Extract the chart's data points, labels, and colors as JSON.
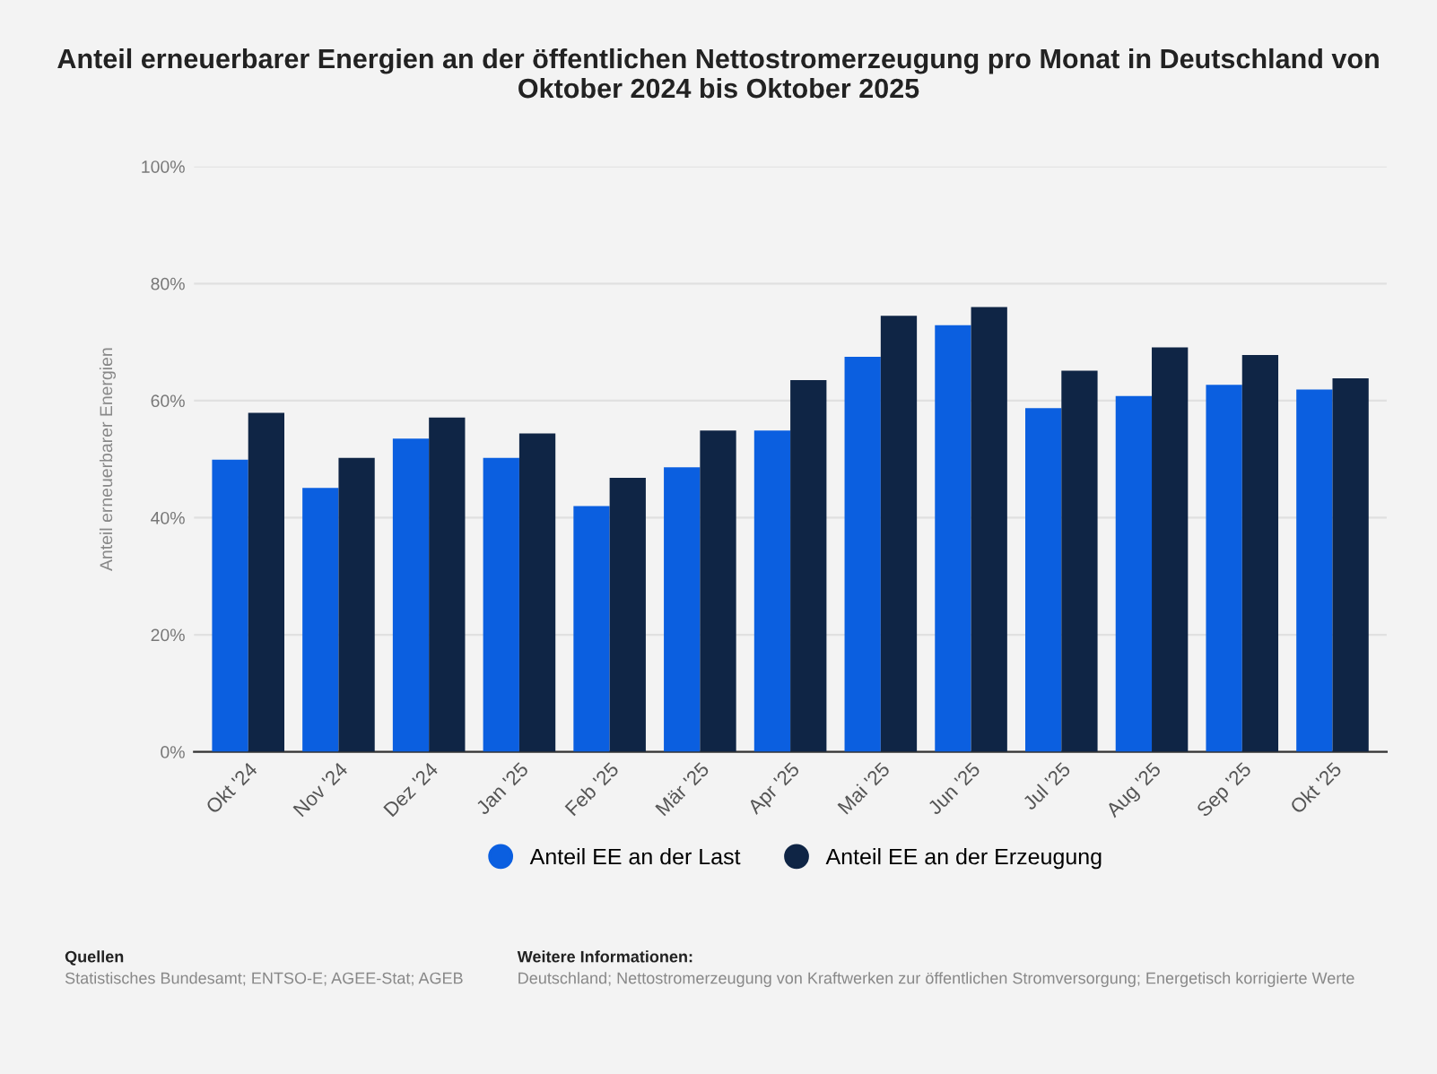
{
  "chart_data": {
    "type": "bar",
    "title": "Anteil erneuerbarer Energien an der öffentlichen Nettostromerzeugung pro Monat in Deutschland von Oktober 2024 bis Oktober 2025",
    "ylabel": "Anteil erneuerbarer Energien",
    "categories": [
      "Okt '24",
      "Nov '24",
      "Dez '24",
      "Jan '25",
      "Feb '25",
      "Mär '25",
      "Apr '25",
      "Mai '25",
      "Jun '25",
      "Jul '25",
      "Aug '25",
      "Sep '25",
      "Okt '25"
    ],
    "series": [
      {
        "name": "Anteil EE an der Last",
        "color": "#0b5fe0",
        "values": [
          49.9,
          45.1,
          53.5,
          50.2,
          42.0,
          48.6,
          54.9,
          67.5,
          72.9,
          58.7,
          60.8,
          62.7,
          61.9
        ]
      },
      {
        "name": "Anteil EE an der Erzeugung",
        "color": "#0f2545",
        "values": [
          57.9,
          50.2,
          57.1,
          54.4,
          46.8,
          54.9,
          63.5,
          74.5,
          76.0,
          65.1,
          69.1,
          67.8,
          63.8
        ]
      }
    ],
    "ylim": [
      0,
      100
    ],
    "yticks": [
      {
        "value": 0,
        "label": "0%"
      },
      {
        "value": 20,
        "label": "20%"
      },
      {
        "value": 40,
        "label": "40%"
      },
      {
        "value": 60,
        "label": "60%"
      },
      {
        "value": 80,
        "label": "80%"
      },
      {
        "value": 100,
        "label": "100%"
      }
    ],
    "grid": "y",
    "legend": "bottom",
    "annotations": [
      "Quellen",
      "Statistisches Bundesamt; ENTSO-E; AGEE-Stat; AGEB",
      "Weitere Informationen:",
      "Deutschland; Nettostromerzeugung von Kraftwerken zur öffentlichen Stromversorgung; Energetisch korrigierte Werte"
    ]
  }
}
